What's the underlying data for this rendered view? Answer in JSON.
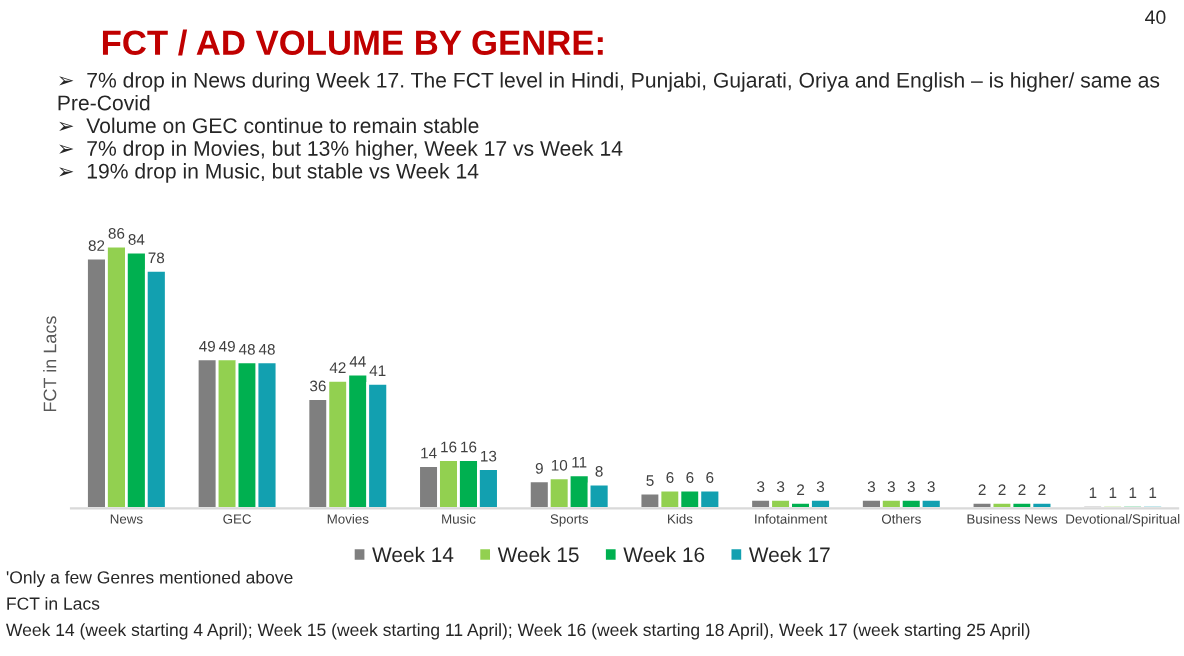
{
  "chart_data": {
    "type": "bar",
    "title": "FCT / AD VOLUME BY GENRE:",
    "subtitle": "➢  7% drop in News during Week 17. The FCT level in Hindi, Punjabi, Gujarati, Oriya and English – is higher/ same as Pre-Covid\n➢  Volume on GEC continue to remain stable\n➢  7% drop in Movies, but 13% higher, Week 17 vs Week 14\n➢  19% drop in Music, but stable vs Week 14",
    "ylabel": "FCT in Lacs",
    "categories": [
      "News",
      "GEC",
      "Movies",
      "Music",
      "Sports",
      "Kids",
      "Infotainment",
      "Others",
      "Business News",
      "Devotional/Spiritual"
    ],
    "series": [
      {
        "name": "Week 14",
        "color": "#7f7f7f",
        "values": [
          82,
          49,
          36,
          14,
          9,
          5,
          3,
          3,
          2,
          1
        ]
      },
      {
        "name": "Week 15",
        "color": "#92d050",
        "values": [
          86,
          49,
          42,
          16,
          10,
          6,
          3,
          3,
          2,
          1
        ]
      },
      {
        "name": "Week 16",
        "color": "#00b050",
        "values": [
          84,
          48,
          44,
          16,
          11,
          6,
          2,
          3,
          2,
          1
        ]
      },
      {
        "name": "Week 17",
        "color": "#12a0b0",
        "values": [
          78,
          48,
          41,
          13,
          8,
          6,
          3,
          3,
          2,
          1
        ]
      }
    ],
    "data_labels": true,
    "tick_labels": "x",
    "grid": false,
    "legend": "bottom",
    "annotations": [
      "40",
      "'Only a few Genres mentioned above",
      "FCT in Lacs",
      "Week 14 (week starting 4 April); Week 15 (week starting 11 April); Week 16 (week starting 18 April), Week 17 (week starting 25 April)"
    ]
  }
}
